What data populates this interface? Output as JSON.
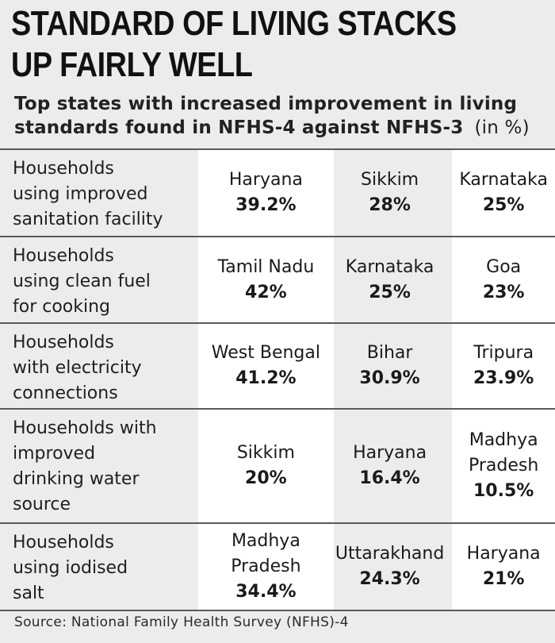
{
  "title_line1": "STANDARD OF LIVING STACKS",
  "title_line2": "UP FAIRLY WELL",
  "subtitle_line1": "Top states with increased improvement in living",
  "subtitle_line2": "standards found in NFHS-4 against NFHS-3",
  "subtitle_unit": "(in %)",
  "rows": [
    {
      "label_lines": [
        "Households",
        "using improved",
        "sanitation facility"
      ],
      "cells": [
        {
          "state_lines": [
            "Haryana"
          ],
          "pct": "39.2%"
        },
        {
          "state_lines": [
            "Sikkim"
          ],
          "pct": "28%"
        },
        {
          "state_lines": [
            "Karnataka"
          ],
          "pct": "25%"
        }
      ]
    },
    {
      "label_lines": [
        "Households",
        "using clean fuel",
        "for cooking"
      ],
      "cells": [
        {
          "state_lines": [
            "Tamil Nadu"
          ],
          "pct": "42%"
        },
        {
          "state_lines": [
            "Karnataka"
          ],
          "pct": "25%"
        },
        {
          "state_lines": [
            "Goa"
          ],
          "pct": "23%"
        }
      ]
    },
    {
      "label_lines": [
        "Households",
        "with electricity",
        "connections"
      ],
      "cells": [
        {
          "state_lines": [
            "West Bengal"
          ],
          "pct": "41.2%"
        },
        {
          "state_lines": [
            "Bihar"
          ],
          "pct": "30.9%"
        },
        {
          "state_lines": [
            "Tripura"
          ],
          "pct": "23.9%"
        }
      ]
    },
    {
      "label_lines": [
        "Households with",
        "improved",
        "drinking water",
        "source"
      ],
      "cells": [
        {
          "state_lines": [
            "Sikkim"
          ],
          "pct": "20%"
        },
        {
          "state_lines": [
            "Haryana"
          ],
          "pct": "16.4%"
        },
        {
          "state_lines": [
            "Madhya",
            "Pradesh"
          ],
          "pct": "10.5%"
        }
      ]
    },
    {
      "label_lines": [
        "Households",
        "using iodised",
        "salt"
      ],
      "cells": [
        {
          "state_lines": [
            "Madhya",
            "Pradesh"
          ],
          "pct": "34.4%"
        },
        {
          "state_lines": [
            "Uttarakhand"
          ],
          "pct": "24.3%"
        },
        {
          "state_lines": [
            "Haryana"
          ],
          "pct": "21%"
        }
      ]
    }
  ],
  "source": "Source: National Family Health Survey (NFHS)-4"
}
